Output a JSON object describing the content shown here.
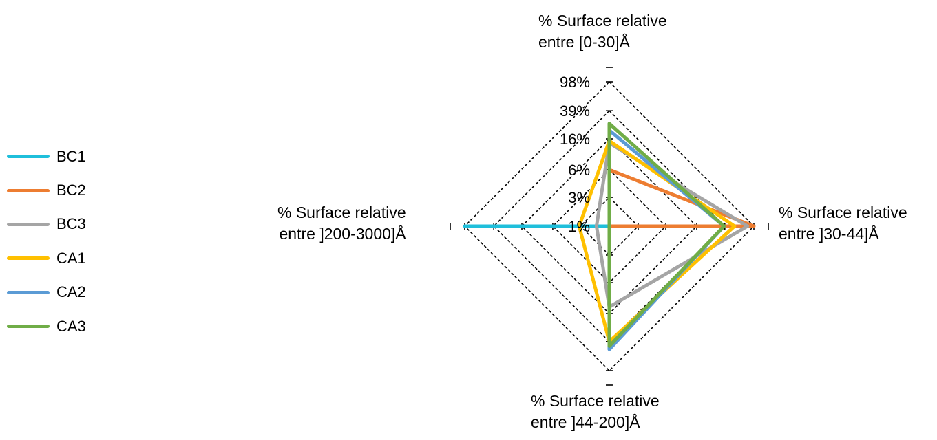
{
  "chart_data": {
    "type": "radar",
    "scale": "log",
    "axes": [
      "% Surface relative entre [0-30]Å",
      "% Surface relative entre ]30-44]Å",
      "% Surface relative entre ]44-200]Å",
      "% Surface relative entre ]200-3000]Å"
    ],
    "axis_title_lines": [
      [
        "% Surface relative",
        "entre [0-30]Å"
      ],
      [
        "% Surface relative",
        "entre ]30-44]Å"
      ],
      [
        "% Surface relative",
        "entre ]44-200]Å"
      ],
      [
        "% Surface relative",
        "entre ]200-3000]Å"
      ]
    ],
    "ticks": [
      "1%",
      "3%",
      "6%",
      "16%",
      "39%",
      "98%"
    ],
    "tick_values": [
      1,
      2.5,
      6,
      16,
      39,
      98
    ],
    "legend_position": "left",
    "gridlines": "dashed",
    "series": [
      {
        "name": "BC1",
        "color": "#1fbfdb",
        "values": [
          1,
          1,
          1,
          98
        ]
      },
      {
        "name": "BC2",
        "color": "#ed7d31",
        "values": [
          6,
          98,
          1,
          1
        ]
      },
      {
        "name": "BC3",
        "color": "#a5a5a5",
        "values": [
          14,
          80,
          13,
          1.5
        ]
      },
      {
        "name": "CA1",
        "color": "#ffc000",
        "values": [
          15,
          53,
          39,
          2.6
        ]
      },
      {
        "name": "CA2",
        "color": "#5b9bd5",
        "values": [
          21,
          38,
          50,
          1
        ]
      },
      {
        "name": "CA3",
        "color": "#70ad47",
        "values": [
          26,
          38,
          45,
          1
        ]
      }
    ]
  }
}
